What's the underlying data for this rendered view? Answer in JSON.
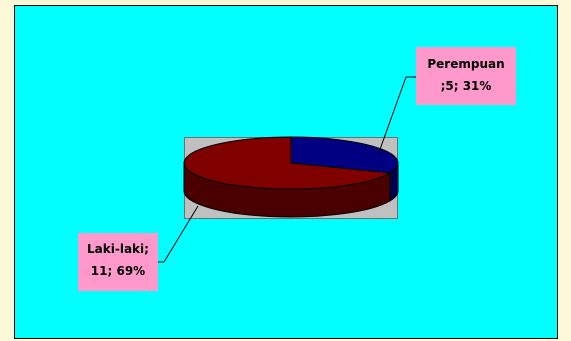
{
  "chart_data": {
    "type": "pie",
    "style": "3d",
    "categories": [
      "Perempuan",
      "Laki-laki"
    ],
    "values": [
      5,
      11
    ],
    "percentages": [
      31,
      69
    ],
    "slice_colors": [
      "#000080",
      "#800000"
    ],
    "slice_side_colors": [
      "#000050",
      "#4a0000"
    ],
    "legend": "none"
  },
  "labels": {
    "perempuan_line1": "Perempuan",
    "perempuan_line2": ";5; 31%",
    "laki_line1": "Laki-laki;",
    "laki_line2": "11; 69%"
  },
  "colors": {
    "page_background": "#fdf8d8",
    "chart_background": "#00ffff",
    "plot_background": "#c0c0c0",
    "label_background": "#ff99cc",
    "leader_line": "#000000"
  }
}
